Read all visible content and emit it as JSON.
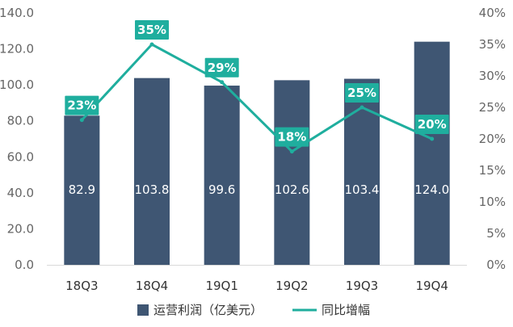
{
  "chart_data": {
    "type": "bar",
    "categories": [
      "18Q3",
      "18Q4",
      "19Q1",
      "19Q2",
      "19Q3",
      "19Q4"
    ],
    "series": [
      {
        "name": "运营利润（亿美元）",
        "type": "bar",
        "axis": "left",
        "values": [
          82.9,
          103.8,
          99.6,
          102.6,
          103.4,
          124.0
        ],
        "value_labels": [
          "82.9",
          "103.8",
          "99.6",
          "102.6",
          "103.4",
          "124.0"
        ],
        "color": "#3F5673"
      },
      {
        "name": "同比增幅",
        "type": "line",
        "axis": "right",
        "values": [
          23,
          35,
          29,
          18,
          25,
          20
        ],
        "value_labels": [
          "23%",
          "35%",
          "29%",
          "18%",
          "25%",
          "20%"
        ],
        "color": "#1FAE9E"
      }
    ],
    "y_left": {
      "ylim": [
        0,
        140
      ],
      "ticks": [
        0,
        20,
        40,
        60,
        80,
        100,
        120,
        140
      ],
      "tick_labels": [
        "0.0",
        "20.0",
        "40.0",
        "60.0",
        "80.0",
        "100.0",
        "120.0",
        "140.0"
      ]
    },
    "y_right": {
      "ylim": [
        0,
        40
      ],
      "ticks": [
        0,
        5,
        10,
        15,
        20,
        25,
        30,
        35,
        40
      ],
      "tick_labels": [
        "0%",
        "5%",
        "10%",
        "15%",
        "20%",
        "25%",
        "30%",
        "35%",
        "40%"
      ]
    },
    "grid": false,
    "legend": "bottom",
    "title": "",
    "xlabel": "",
    "ylabel": ""
  }
}
